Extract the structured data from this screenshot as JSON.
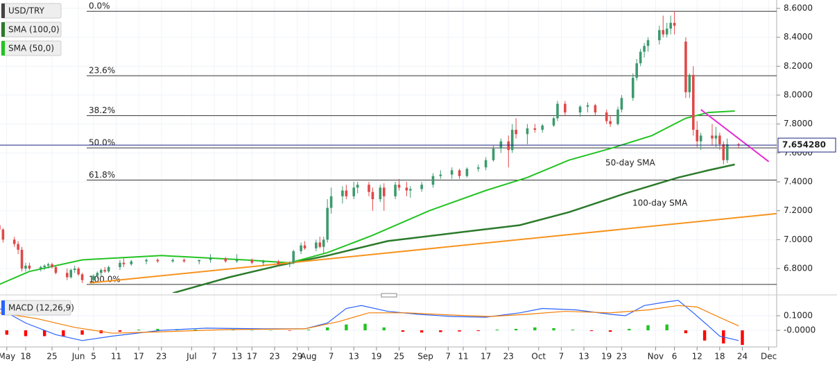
{
  "chart_data": [
    {
      "type": "candlestick",
      "title": "USD/TRY",
      "color_up": "#3d9a6e",
      "color_down": "#e04848",
      "grid": true,
      "xlim": [
        10.2,
        216.1
      ],
      "ylim": [
        6.632,
        8.658
      ],
      "yticks": [
        {
          "value": 8.6,
          "label": "8.6000"
        },
        {
          "value": 8.4,
          "label": "8.4000"
        },
        {
          "value": 8.2,
          "label": "8.2000"
        },
        {
          "value": 8.0,
          "label": "8.0000"
        },
        {
          "value": 7.8,
          "label": "7.8000"
        },
        {
          "value": 7.6,
          "label": "7.6000"
        },
        {
          "value": 7.4,
          "label": "7.4000"
        },
        {
          "value": 7.2,
          "label": "7.2000"
        },
        {
          "value": 7.0,
          "label": "7.0000"
        },
        {
          "value": 6.8,
          "label": "6.8000"
        }
      ],
      "x": [
        10,
        11,
        14,
        15,
        16,
        17,
        18,
        21,
        22,
        23,
        24,
        25,
        28,
        29,
        30,
        31,
        32,
        35,
        36,
        37,
        38,
        39,
        42,
        43,
        45,
        49,
        52,
        56,
        59,
        63,
        66,
        70,
        73,
        77,
        80,
        84,
        87,
        88,
        90,
        91,
        94,
        95,
        96,
        97,
        98,
        101,
        102,
        104,
        105,
        108,
        109,
        111,
        112,
        115,
        116,
        118,
        119,
        122,
        125,
        127,
        130,
        132,
        134,
        137,
        139,
        141,
        143,
        145,
        146,
        147,
        150,
        152,
        154,
        157,
        158,
        160,
        164,
        166,
        168,
        171,
        172,
        174,
        175,
        178,
        179,
        180,
        181,
        182,
        185,
        186,
        187,
        188,
        189,
        192,
        193,
        194,
        195,
        196,
        199,
        200,
        201,
        202,
        203,
        206
      ],
      "open": [
        7.1,
        7.07,
        7.0,
        6.97,
        6.93,
        6.8,
        6.82,
        6.8,
        6.81,
        6.82,
        6.83,
        6.81,
        6.77,
        6.74,
        6.79,
        6.8,
        6.76,
        6.72,
        6.75,
        6.77,
        6.79,
        6.78,
        6.81,
        6.84,
        6.83,
        6.85,
        6.86,
        6.85,
        6.86,
        6.85,
        6.86,
        6.87,
        6.85,
        6.86,
        6.84,
        6.85,
        6.83,
        6.84,
        6.92,
        6.96,
        6.94,
        6.98,
        6.95,
        7.0,
        7.22,
        7.3,
        7.34,
        7.3,
        7.36,
        7.38,
        7.33,
        7.28,
        7.36,
        7.3,
        7.38,
        7.36,
        7.34,
        7.35,
        7.38,
        7.44,
        7.45,
        7.48,
        7.44,
        7.49,
        7.5,
        7.55,
        7.63,
        7.68,
        7.62,
        7.76,
        7.73,
        7.77,
        7.76,
        7.79,
        7.84,
        7.94,
        7.88,
        7.92,
        7.93,
        7.88,
        7.82,
        7.8,
        7.9,
        7.98,
        8.12,
        8.22,
        8.3,
        8.34,
        8.38,
        8.45,
        8.42,
        8.46,
        8.5,
        8.37,
        8.02,
        8.14,
        7.76,
        7.68,
        7.72,
        7.7,
        7.72,
        7.66,
        7.55,
        7.66
      ],
      "high": [
        7.12,
        7.08,
        7.02,
        6.99,
        6.95,
        6.84,
        6.84,
        6.82,
        6.83,
        6.84,
        6.84,
        6.82,
        6.8,
        6.8,
        6.82,
        6.81,
        6.77,
        6.76,
        6.78,
        6.8,
        6.81,
        6.82,
        6.86,
        6.87,
        6.86,
        6.87,
        6.87,
        6.87,
        6.87,
        6.86,
        6.9,
        6.88,
        6.9,
        6.87,
        6.86,
        6.86,
        6.85,
        6.93,
        6.98,
        6.99,
        7.0,
        7.02,
        7.02,
        7.28,
        7.36,
        7.37,
        7.38,
        7.4,
        7.4,
        7.4,
        7.36,
        7.38,
        7.39,
        7.4,
        7.42,
        7.4,
        7.37,
        7.4,
        7.46,
        7.48,
        7.5,
        7.49,
        7.5,
        7.52,
        7.57,
        7.65,
        7.7,
        7.72,
        7.8,
        7.84,
        7.8,
        7.8,
        7.8,
        7.85,
        7.96,
        7.96,
        7.93,
        7.95,
        7.94,
        7.9,
        7.86,
        7.92,
        8.0,
        8.15,
        8.25,
        8.32,
        8.36,
        8.4,
        8.48,
        8.55,
        8.5,
        8.55,
        8.58,
        8.4,
        8.15,
        8.2,
        7.82,
        7.74,
        7.8,
        7.78,
        7.74,
        7.68,
        7.7,
        7.67
      ],
      "low": [
        7.05,
        6.98,
        6.95,
        6.9,
        6.78,
        6.78,
        6.79,
        6.78,
        6.79,
        6.8,
        6.8,
        6.76,
        6.72,
        6.73,
        6.77,
        6.75,
        6.7,
        6.7,
        6.73,
        6.75,
        6.77,
        6.77,
        6.79,
        6.81,
        6.82,
        6.83,
        6.84,
        6.84,
        6.84,
        6.83,
        6.84,
        6.84,
        6.84,
        6.83,
        6.82,
        6.82,
        6.81,
        6.83,
        6.9,
        6.93,
        6.92,
        6.94,
        6.9,
        6.98,
        7.18,
        7.25,
        7.28,
        7.28,
        7.32,
        7.3,
        7.2,
        7.26,
        7.2,
        7.28,
        7.34,
        7.3,
        7.29,
        7.33,
        7.36,
        7.42,
        7.42,
        7.42,
        7.43,
        7.47,
        7.48,
        7.54,
        7.6,
        7.5,
        7.6,
        7.7,
        7.66,
        7.74,
        7.74,
        7.78,
        7.82,
        7.86,
        7.85,
        7.88,
        7.86,
        7.8,
        7.78,
        7.79,
        7.88,
        7.96,
        8.1,
        8.2,
        8.26,
        8.3,
        8.35,
        8.4,
        8.4,
        8.42,
        8.42,
        7.98,
        7.98,
        7.72,
        7.64,
        7.62,
        7.65,
        7.64,
        7.62,
        7.52,
        7.53,
        7.63
      ],
      "close": [
        7.07,
        7.0,
        6.97,
        6.93,
        6.8,
        6.82,
        6.8,
        6.81,
        6.82,
        6.83,
        6.81,
        6.77,
        6.74,
        6.79,
        6.8,
        6.76,
        6.72,
        6.75,
        6.77,
        6.79,
        6.78,
        6.81,
        6.84,
        6.83,
        6.85,
        6.86,
        6.85,
        6.86,
        6.85,
        6.86,
        6.87,
        6.85,
        6.86,
        6.84,
        6.85,
        6.83,
        6.84,
        6.92,
        6.96,
        6.94,
        6.98,
        6.95,
        7.0,
        7.22,
        7.3,
        7.34,
        7.3,
        7.36,
        7.38,
        7.33,
        7.28,
        7.36,
        7.3,
        7.38,
        7.36,
        7.34,
        7.35,
        7.38,
        7.44,
        7.45,
        7.48,
        7.44,
        7.49,
        7.5,
        7.55,
        7.63,
        7.68,
        7.62,
        7.76,
        7.73,
        7.77,
        7.76,
        7.79,
        7.84,
        7.94,
        7.88,
        7.92,
        7.93,
        7.88,
        7.82,
        7.8,
        7.9,
        7.98,
        8.12,
        8.22,
        8.3,
        8.34,
        8.38,
        8.45,
        8.42,
        8.46,
        8.5,
        8.48,
        8.02,
        8.14,
        7.76,
        7.68,
        7.72,
        7.7,
        7.72,
        7.66,
        7.55,
        7.66,
        7.654
      ],
      "lines": [
        {
          "name": "SMA (100,0)",
          "color": "#2b7a2b",
          "width": 2.5,
          "x": [
            56,
            71,
            84,
            97,
            113,
            132,
            148,
            161,
            176,
            190,
            198,
            205
          ],
          "values": [
            6.63,
            6.74,
            6.82,
            6.89,
            6.99,
            7.05,
            7.1,
            7.19,
            7.32,
            7.43,
            7.48,
            7.52
          ]
        },
        {
          "name": "SMA (50,0)",
          "color": "#22c322",
          "width": 2,
          "x": [
            10,
            18,
            32,
            53,
            75,
            87,
            97,
            109,
            124,
            139,
            150,
            161,
            172,
            183,
            192,
            198,
            205
          ],
          "values": [
            6.69,
            6.78,
            6.86,
            6.89,
            6.86,
            6.84,
            6.91,
            7.03,
            7.2,
            7.34,
            7.43,
            7.55,
            7.63,
            7.72,
            7.84,
            7.88,
            7.89
          ]
        },
        {
          "color": "#f7931e",
          "width": 2,
          "x": [
            34,
            216
          ],
          "values": [
            6.7,
            7.18
          ]
        },
        {
          "color": "#e62ad4",
          "width": 2,
          "x": [
            196,
            214
          ],
          "values": [
            7.9,
            7.54
          ]
        }
      ],
      "fib_levels": [
        {
          "label": "0.0%",
          "value": 8.58
        },
        {
          "label": "23.6%",
          "value": 8.134
        },
        {
          "label": "38.2%",
          "value": 7.858
        },
        {
          "label": "50.0%",
          "value": 7.635
        },
        {
          "label": "61.8%",
          "value": 7.412
        },
        {
          "label": "100.0%",
          "value": 6.69
        }
      ],
      "last_price": {
        "value": 7.65428,
        "label": "7.654280"
      },
      "annotations": [
        {
          "text": "50-day SMA",
          "color": "#22b022"
        },
        {
          "text": "100-day SMA",
          "color": "#2b7a2b"
        }
      ]
    },
    {
      "type": "macd",
      "title": "MACD (12,26,9)",
      "grid": true,
      "xlim": [
        10.2,
        216.1
      ],
      "ylim": [
        -0.114,
        0.219
      ],
      "yticks": [
        {
          "value": 0.1,
          "label": "0.1000"
        },
        {
          "value": 0,
          "label": "-0.0000"
        }
      ],
      "xticks": [
        {
          "value": 12,
          "label": "May"
        },
        {
          "value": 17,
          "label": "18"
        },
        {
          "value": 24,
          "label": "25"
        },
        {
          "value": 31,
          "label": "Jun"
        },
        {
          "value": 35,
          "label": "5"
        },
        {
          "value": 41,
          "label": "11"
        },
        {
          "value": 47,
          "label": "17"
        },
        {
          "value": 53,
          "label": "23"
        },
        {
          "value": 61,
          "label": "Jul"
        },
        {
          "value": 67,
          "label": "7"
        },
        {
          "value": 73,
          "label": "13"
        },
        {
          "value": 77,
          "label": "17"
        },
        {
          "value": 83,
          "label": "23"
        },
        {
          "value": 89,
          "label": "29"
        },
        {
          "value": 92,
          "label": "Aug"
        },
        {
          "value": 98,
          "label": "7"
        },
        {
          "value": 104,
          "label": "13"
        },
        {
          "value": 110,
          "label": "19"
        },
        {
          "value": 116,
          "label": "25"
        },
        {
          "value": 123,
          "label": "Sep"
        },
        {
          "value": 129,
          "label": "7"
        },
        {
          "value": 133,
          "label": "11"
        },
        {
          "value": 139,
          "label": "17"
        },
        {
          "value": 145,
          "label": "23"
        },
        {
          "value": 153,
          "label": "Oct"
        },
        {
          "value": 159,
          "label": "7"
        },
        {
          "value": 165,
          "label": "13"
        },
        {
          "value": 171,
          "label": "19"
        },
        {
          "value": 175,
          "label": "23"
        },
        {
          "value": 184,
          "label": "Nov"
        },
        {
          "value": 189,
          "label": "6"
        },
        {
          "value": 195,
          "label": "12"
        },
        {
          "value": 201,
          "label": "18"
        },
        {
          "value": 207,
          "label": "24"
        },
        {
          "value": 214,
          "label": "Dec"
        }
      ],
      "series": [
        {
          "color": "#2962ff",
          "x": [
            10,
            17,
            25,
            32,
            40,
            53,
            65,
            80,
            91,
            97,
            102,
            106,
            113,
            121,
            130,
            139,
            148,
            154,
            163,
            172,
            176,
            181,
            187,
            190,
            194,
            198,
            201,
            206
          ],
          "values": [
            0.15,
            0.05,
            -0.03,
            -0.07,
            -0.04,
            0.0,
            0.015,
            0.01,
            0.01,
            0.05,
            0.15,
            0.17,
            0.13,
            0.11,
            0.095,
            0.09,
            0.12,
            0.15,
            0.14,
            0.11,
            0.1,
            0.17,
            0.195,
            0.205,
            0.12,
            0.03,
            -0.04,
            -0.07
          ]
        },
        {
          "color": "#f57c00",
          "x": [
            10,
            20,
            30,
            40,
            53,
            70,
            91,
            100,
            108,
            118,
            130,
            140,
            150,
            160,
            172,
            182,
            190,
            195,
            200,
            206
          ],
          "values": [
            0.12,
            0.08,
            0.02,
            -0.02,
            -0.01,
            0.005,
            0.01,
            0.06,
            0.12,
            0.12,
            0.105,
            0.095,
            0.11,
            0.13,
            0.12,
            0.14,
            0.17,
            0.16,
            0.1,
            0.03
          ]
        }
      ],
      "histogram": {
        "color_pos": "#22c322",
        "color_neg": "#ff0000",
        "x": [
          12,
          17,
          22,
          27,
          32,
          37,
          42,
          47,
          52,
          57,
          62,
          67,
          72,
          77,
          82,
          87,
          92,
          97,
          102,
          107,
          112,
          117,
          122,
          127,
          132,
          137,
          142,
          147,
          152,
          157,
          162,
          167,
          172,
          177,
          182,
          187,
          192,
          197,
          202,
          207
        ],
        "values": [
          -0.03,
          -0.04,
          -0.04,
          -0.04,
          -0.03,
          -0.02,
          -0.01,
          0.005,
          0.01,
          0.008,
          0.005,
          0.004,
          0.002,
          0.001,
          0.0,
          -0.003,
          0.005,
          0.02,
          0.04,
          0.045,
          0.02,
          -0.01,
          -0.015,
          -0.012,
          -0.008,
          -0.005,
          0.005,
          0.01,
          0.02,
          0.015,
          0.005,
          -0.005,
          -0.01,
          0.01,
          0.035,
          0.04,
          -0.02,
          -0.07,
          -0.09,
          -0.1
        ]
      }
    }
  ]
}
